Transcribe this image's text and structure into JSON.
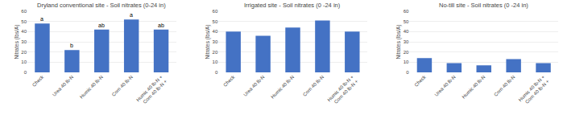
{
  "chart_data": [
    {
      "type": "bar",
      "title": "Dryland conventional site - Soil nitrates (0-24 in)",
      "categories": [
        "Check",
        "Urea 40 lb-N",
        "Humic 40 lb-N",
        "Corn 40 lb-N",
        "Humic 40 lb-N +\nCorn 40 lb-N +"
      ],
      "values": [
        48,
        22,
        42,
        52,
        42
      ],
      "annotations": [
        "a",
        "b",
        "ab",
        "a",
        "ab"
      ],
      "ylabel": "Nitrates (lbs/A)",
      "color": "#4472C4",
      "ylim": [
        0,
        60
      ],
      "yticks": [
        0,
        10,
        20,
        30,
        40,
        50,
        60
      ],
      "grid": true
    },
    {
      "type": "bar",
      "title": "Irrigated site - Soil nitrates (0 -24 in)",
      "categories": [
        "Check",
        "Urea 40 lb-N",
        "Humic 40 lb-N",
        "Corn 40 lb-N",
        "Humic 40 lb-N +\nCorn 40 lb-N +"
      ],
      "values": [
        40,
        36,
        44,
        51,
        40
      ],
      "ylabel": "Nitrates (lbs/A)",
      "color": "#4472C4",
      "ylim": [
        0,
        60
      ],
      "yticks": [
        0,
        10,
        20,
        30,
        40,
        50,
        60
      ],
      "grid": true
    },
    {
      "type": "bar",
      "title": "No-till site - Soil nitrates (0 -24 in)",
      "categories": [
        "Check",
        "Urea 40 lb-N",
        "Humic 40 lb-N",
        "Corn 40 lb-N",
        "Humic 40 lb-N +\nCorn 40 lb-N +"
      ],
      "values": [
        14,
        9,
        7,
        13,
        9
      ],
      "ylabel": "Nitrates (lbs/A)",
      "color": "#4472C4",
      "ylim": [
        0,
        60
      ],
      "yticks": [
        0,
        10,
        20,
        30,
        40,
        50,
        60
      ],
      "grid": true
    }
  ]
}
